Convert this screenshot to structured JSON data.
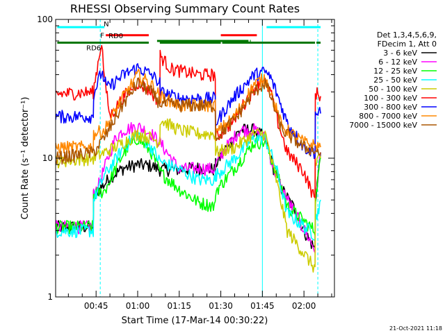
{
  "chart_data": {
    "type": "line",
    "title": "RHESSI Observing Summary Count Rates",
    "xlabel": "Start Time (17-Mar-14 00:30:22)",
    "ylabel": "Count Rate (s⁻¹ detector⁻¹)",
    "y_scale": "log",
    "ylim": [
      1,
      100
    ],
    "y_tick_labels": [
      "1",
      "10",
      "100"
    ],
    "x_unit": "minutes",
    "xlim": [
      30.4,
      131.0
    ],
    "x_tick_labels": [
      "00:45",
      "01:00",
      "01:15",
      "01:30",
      "01:45",
      "02:00"
    ],
    "x_tick_values": [
      45,
      60,
      75,
      90,
      105,
      120
    ],
    "legend": {
      "placement": "right-outside",
      "header": [
        "Det 1,3,4,5,6,9,",
        "FDecim 1, Att 0"
      ]
    },
    "series": [
      {
        "name": "3 - 6 keV",
        "color": "#000000",
        "x": [
          30.4,
          44,
          44.1,
          48,
          50,
          55,
          60,
          65,
          68,
          75,
          82,
          88,
          88.1,
          92,
          97,
          102,
          106,
          109,
          112,
          117,
          120,
          124,
          124.1,
          126
        ],
        "y": [
          3.2,
          3.2,
          5.5,
          6.5,
          7.3,
          8.5,
          9.0,
          8.8,
          8.3,
          8.3,
          8.5,
          8.3,
          9.0,
          12,
          16,
          16,
          14,
          8.5,
          6.0,
          4.2,
          3.0,
          2.2,
          5.0,
          11
        ]
      },
      {
        "name": "6 - 12 keV",
        "color": "#ff00ff",
        "x": [
          30.4,
          44,
          44.1,
          46,
          48,
          50,
          52,
          55,
          60,
          65,
          68,
          75,
          82,
          88,
          88.1,
          92,
          97,
          102,
          106,
          109,
          112,
          124,
          124.1,
          126
        ],
        "y": [
          3.2,
          3.2,
          5.5,
          6.5,
          8.5,
          11,
          14,
          16,
          17,
          15,
          13,
          8.3,
          8.5,
          8.3,
          9.0,
          12,
          16,
          16,
          14,
          8.5,
          6.0,
          2.2,
          5.0,
          11
        ]
      },
      {
        "name": "12 - 25 keV",
        "color": "#00ff00",
        "x": [
          30.4,
          44,
          44.1,
          48,
          55,
          60,
          65,
          68,
          75,
          82,
          88,
          88.1,
          95,
          102,
          106,
          110,
          114,
          124,
          124.1,
          126
        ],
        "y": [
          3.2,
          3.2,
          5.5,
          5.8,
          11,
          14,
          11,
          8.0,
          6.0,
          4.8,
          4.5,
          5.8,
          8.5,
          13,
          13,
          8.0,
          4.5,
          3.0,
          5.0,
          10
        ]
      },
      {
        "name": "25 - 50 keV",
        "color": "#00ffff",
        "x": [
          30.4,
          44,
          44.1,
          48,
          55,
          60,
          65,
          68,
          75,
          82,
          88,
          88.1,
          95,
          102,
          106,
          110,
          114,
          124,
          124.1,
          126
        ],
        "y": [
          3.0,
          3.0,
          5.0,
          7.5,
          12,
          15,
          12,
          9.5,
          8.3,
          7.0,
          7.0,
          7.5,
          10,
          14,
          14,
          8.5,
          4.0,
          2.8,
          3.5,
          5.0
        ]
      },
      {
        "name": "50 - 100 keV",
        "color": "#cccc00",
        "x": [
          30.4,
          44,
          48,
          55,
          60,
          65,
          68,
          68.1,
          75,
          82,
          88,
          88.1,
          95,
          102,
          106,
          110,
          114,
          124,
          124.1,
          126
        ],
        "y": [
          9.5,
          10,
          11,
          13,
          15,
          14,
          13,
          19,
          16,
          15,
          15,
          11,
          12,
          15,
          15,
          7.0,
          3.0,
          1.6,
          9.0,
          10
        ]
      },
      {
        "name": "100 - 300 keV",
        "color": "#ff0000",
        "x": [
          30.4,
          44,
          45,
          47,
          48,
          50,
          55,
          60,
          65,
          68,
          68.1,
          72,
          82,
          88,
          88.1,
          94,
          102,
          105,
          108,
          110,
          114,
          120,
          124,
          124.1,
          126
        ],
        "y": [
          29,
          30,
          40,
          70,
          38,
          20,
          28,
          35,
          30,
          25,
          55,
          44,
          40,
          40,
          14,
          18,
          32,
          38,
          30,
          20,
          11,
          8.0,
          5.0,
          30,
          28
        ]
      },
      {
        "name": "300 - 800 keV",
        "color": "#0000ff",
        "x": [
          30.4,
          44,
          44.1,
          47,
          49,
          55,
          60,
          65,
          68,
          68.1,
          75,
          82,
          88,
          88.1,
          95,
          102,
          106,
          108,
          110,
          114,
          120,
          124,
          124.1,
          126
        ],
        "y": [
          20,
          20,
          29,
          42,
          32,
          40,
          45,
          40,
          35,
          30,
          27,
          27,
          27,
          18,
          28,
          40,
          42,
          38,
          30,
          18,
          12,
          11,
          21,
          21
        ]
      },
      {
        "name": "800 - 7000 keV",
        "color": "#ff8800",
        "x": [
          30.4,
          44,
          44.1,
          48,
          55,
          60,
          65,
          68,
          75,
          82,
          88,
          88.1,
          95,
          102,
          106,
          108,
          112,
          120,
          126
        ],
        "y": [
          12,
          12,
          15,
          16,
          28,
          40,
          34,
          28,
          24,
          24,
          24,
          15,
          20,
          34,
          38,
          30,
          17,
          13,
          12
        ]
      },
      {
        "name": "7000 - 15000 keV",
        "color": "#aa5500",
        "x": [
          30.4,
          44,
          48,
          55,
          60,
          65,
          68,
          75,
          82,
          88,
          88.1,
          95,
          102,
          106,
          108,
          112,
          120,
          126
        ],
        "y": [
          10,
          11,
          14,
          25,
          35,
          30,
          25,
          24,
          24,
          24,
          14,
          19,
          30,
          35,
          28,
          16,
          12,
          11
        ]
      }
    ],
    "state_bars": [
      {
        "label": "N",
        "color": "#00ffff",
        "y": 88,
        "spans": [
          [
            31,
            48
          ],
          [
            106.5,
            126
          ]
        ]
      },
      {
        "label": "F",
        "color": "#ff0000",
        "y": 77,
        "spans": [
          [
            48.5,
            64
          ],
          [
            90,
            103
          ]
        ]
      },
      {
        "label": "RD0",
        "color": "#007700",
        "y": 70,
        "spans": [
          [
            67,
            100
          ],
          [
            100.5,
            100.8
          ]
        ]
      },
      {
        "label": "RD6",
        "color": "#007700",
        "y": 68,
        "spans": [
          [
            31,
            64
          ],
          [
            68,
            90
          ],
          [
            90.5,
            124
          ],
          [
            124.5,
            126
          ]
        ]
      }
    ],
    "vertical_markers": [
      {
        "x": 46.5,
        "color": "#00ffff",
        "style": "dashed"
      },
      {
        "x": 105,
        "color": "#00ffff",
        "style": "solid"
      },
      {
        "x": 125,
        "color": "#00ffff",
        "style": "dashed"
      }
    ]
  },
  "footer": {
    "timestamp": "21-Oct-2021 11:18"
  }
}
